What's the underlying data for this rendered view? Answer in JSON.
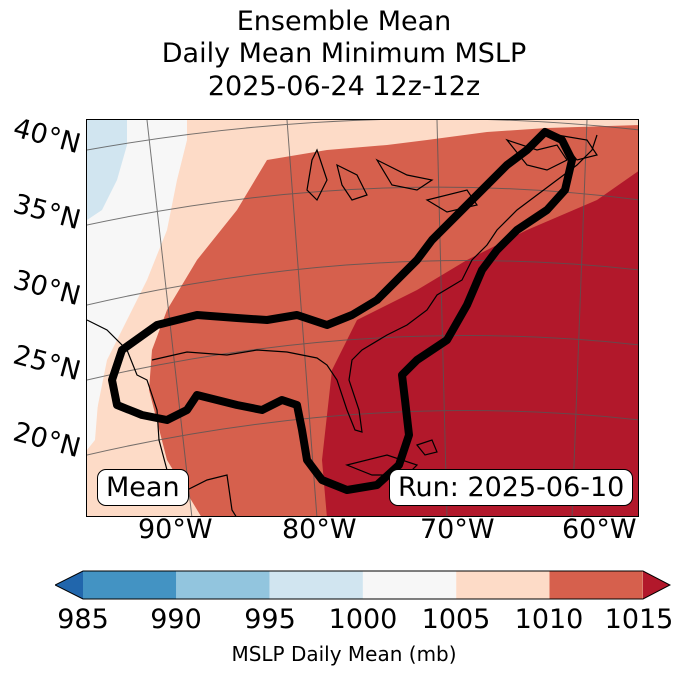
{
  "title": {
    "line1": "Ensemble Mean",
    "line2": "Daily Mean Minimum MSLP",
    "line3": "2025-06-24 12z-12z"
  },
  "map": {
    "lat_labels": [
      "40°N",
      "35°N",
      "30°N",
      "25°N",
      "20°N"
    ],
    "lon_labels": [
      "90°W",
      "80°W",
      "70°W",
      "60°W"
    ],
    "left_box": "Mean",
    "right_box": "Run: 2025-06-10"
  },
  "colorbar": {
    "ticks": [
      "985",
      "990",
      "995",
      "1000",
      "1005",
      "1010",
      "1015"
    ],
    "colors": [
      "#2166ac",
      "#4393c3",
      "#92c5de",
      "#d1e5f0",
      "#f7f7f7",
      "#fddbc7",
      "#d6604d",
      "#b2182b"
    ],
    "label": "MSLP Daily Mean (mb)"
  }
}
